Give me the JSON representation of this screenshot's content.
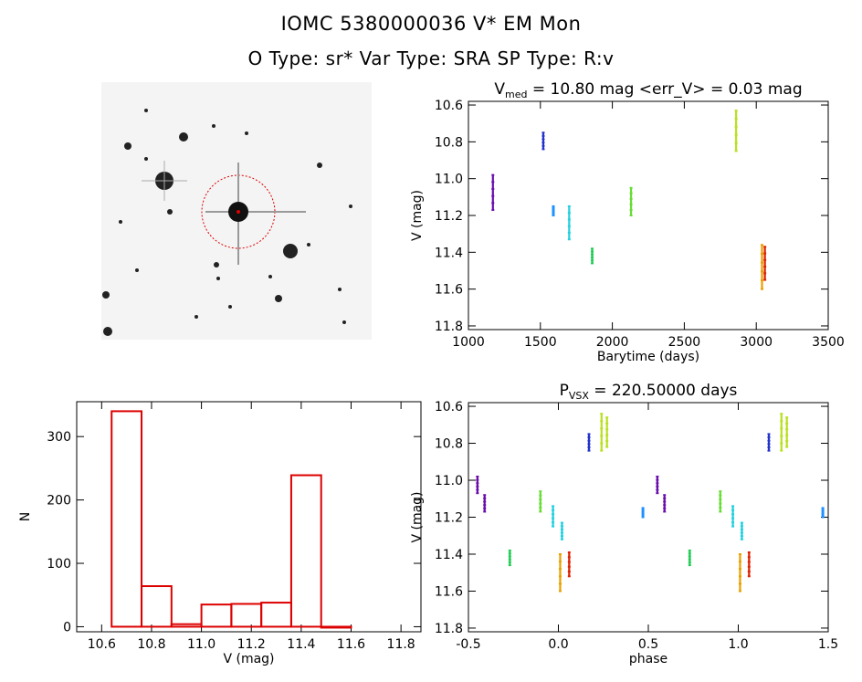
{
  "header": {
    "line1": "IOMC 5380000036    V* EM Mon",
    "line2": "O Type: sr*  Var Type: SRA  SP Type: R:v"
  },
  "chart_data": [
    {
      "id": "lightcurve",
      "type": "scatter",
      "title_main": "V",
      "title_sub": "med",
      "title_rest": " = 10.80 mag <err_V> = 0.03 mag",
      "xlabel": "Barytime (days)",
      "ylabel": "V (mag)",
      "xlim": [
        1000,
        3500
      ],
      "ylim": [
        11.82,
        10.58
      ],
      "xticks": [
        1000,
        1500,
        2000,
        2500,
        3000,
        3500
      ],
      "yticks": [
        10.6,
        10.8,
        11.0,
        11.2,
        11.4,
        11.6,
        11.8
      ],
      "groups": [
        {
          "x": 1170,
          "ymin": 10.98,
          "ymax": 11.17,
          "color": "#6a0dad"
        },
        {
          "x": 1520,
          "ymin": 10.75,
          "ymax": 10.84,
          "color": "#2233cc"
        },
        {
          "x": 1590,
          "ymin": 11.15,
          "ymax": 11.2,
          "color": "#1e90ff"
        },
        {
          "x": 1700,
          "ymin": 11.15,
          "ymax": 11.33,
          "color": "#22d0e0"
        },
        {
          "x": 1860,
          "ymin": 11.38,
          "ymax": 11.46,
          "color": "#22cc55"
        },
        {
          "x": 2130,
          "ymin": 11.05,
          "ymax": 11.2,
          "color": "#66dd33"
        },
        {
          "x": 2860,
          "ymin": 10.63,
          "ymax": 10.85,
          "color": "#b8e020"
        },
        {
          "x": 3040,
          "ymin": 11.36,
          "ymax": 11.6,
          "color": "#e8a000"
        },
        {
          "x": 3060,
          "ymin": 11.37,
          "ymax": 11.55,
          "color": "#dd2200"
        }
      ]
    },
    {
      "id": "histogram",
      "type": "bar",
      "xlabel": "V (mag)",
      "ylabel": "N",
      "xlim": [
        10.5,
        11.88
      ],
      "ylim": [
        -8,
        355
      ],
      "xticks": [
        10.6,
        10.8,
        11.0,
        11.2,
        11.4,
        11.6,
        11.8
      ],
      "yticks": [
        0,
        100,
        200,
        300
      ],
      "bin_edges": [
        10.64,
        10.76,
        10.88,
        11.0,
        11.12,
        11.24,
        11.36,
        11.48,
        11.6
      ],
      "counts": [
        340,
        64,
        4,
        35,
        36,
        38,
        239,
        0
      ],
      "color": "#dd0000"
    },
    {
      "id": "phaseplot",
      "type": "scatter",
      "title_main": "P",
      "title_sub": "VSX",
      "title_rest": " = 220.50000 days",
      "xlabel": "phase",
      "ylabel": "V (mag)",
      "xlim": [
        -0.5,
        1.5
      ],
      "ylim": [
        11.82,
        10.58
      ],
      "xticks": [
        -0.5,
        0.0,
        0.5,
        1.0,
        1.5
      ],
      "yticks": [
        10.6,
        10.8,
        11.0,
        11.2,
        11.4,
        11.6,
        11.8
      ],
      "groups": [
        {
          "x": -0.45,
          "ymin": 10.98,
          "ymax": 11.07,
          "color": "#6a0dad"
        },
        {
          "x": -0.41,
          "ymin": 11.08,
          "ymax": 11.17,
          "color": "#6a0dad"
        },
        {
          "x": -0.27,
          "ymin": 11.38,
          "ymax": 11.46,
          "color": "#22cc55"
        },
        {
          "x": -0.1,
          "ymin": 11.06,
          "ymax": 11.17,
          "color": "#66dd33"
        },
        {
          "x": -0.03,
          "ymin": 11.14,
          "ymax": 11.25,
          "color": "#22d0e0"
        },
        {
          "x": 0.02,
          "ymin": 11.23,
          "ymax": 11.32,
          "color": "#22d0e0"
        },
        {
          "x": 0.01,
          "ymin": 11.4,
          "ymax": 11.6,
          "color": "#e8a000"
        },
        {
          "x": 0.06,
          "ymin": 11.39,
          "ymax": 11.52,
          "color": "#dd2200"
        },
        {
          "x": 0.17,
          "ymin": 10.75,
          "ymax": 10.84,
          "color": "#2233cc"
        },
        {
          "x": 0.24,
          "ymin": 10.64,
          "ymax": 10.84,
          "color": "#b8e020"
        },
        {
          "x": 0.27,
          "ymin": 10.66,
          "ymax": 10.82,
          "color": "#b8e020"
        },
        {
          "x": 0.47,
          "ymin": 11.15,
          "ymax": 11.2,
          "color": "#1e90ff"
        },
        {
          "x": 0.55,
          "ymin": 10.98,
          "ymax": 11.07,
          "color": "#6a0dad"
        },
        {
          "x": 0.59,
          "ymin": 11.08,
          "ymax": 11.17,
          "color": "#6a0dad"
        },
        {
          "x": 0.73,
          "ymin": 11.38,
          "ymax": 11.46,
          "color": "#22cc55"
        },
        {
          "x": 0.9,
          "ymin": 11.06,
          "ymax": 11.17,
          "color": "#66dd33"
        },
        {
          "x": 0.97,
          "ymin": 11.14,
          "ymax": 11.25,
          "color": "#22d0e0"
        },
        {
          "x": 1.02,
          "ymin": 11.23,
          "ymax": 11.32,
          "color": "#22d0e0"
        },
        {
          "x": 1.01,
          "ymin": 11.4,
          "ymax": 11.6,
          "color": "#e8a000"
        },
        {
          "x": 1.06,
          "ymin": 11.39,
          "ymax": 11.52,
          "color": "#dd2200"
        },
        {
          "x": 1.17,
          "ymin": 10.75,
          "ymax": 10.84,
          "color": "#2233cc"
        },
        {
          "x": 1.24,
          "ymin": 10.64,
          "ymax": 10.84,
          "color": "#b8e020"
        },
        {
          "x": 1.27,
          "ymin": 10.66,
          "ymax": 10.82,
          "color": "#b8e020"
        },
        {
          "x": 1.47,
          "ymin": 11.15,
          "ymax": 11.2,
          "color": "#1e90ff"
        }
      ]
    }
  ],
  "sky_image": {
    "corner_label_top_left": "",
    "target_label": "",
    "bottom_label": ""
  }
}
